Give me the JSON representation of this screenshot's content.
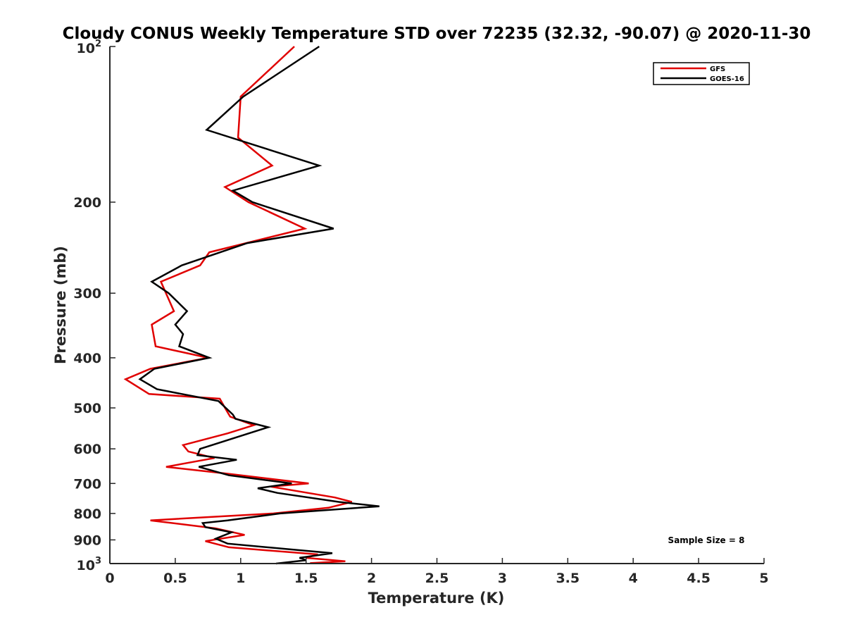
{
  "chart_data": {
    "type": "line",
    "title": "Cloudy CONUS Weekly Temperature STD over 72235 (32.32, -90.07) @ 2020-11-30",
    "xlabel": "Temperature (K)",
    "ylabel": "Pressure (mb)",
    "xlim": [
      0,
      5
    ],
    "ylim": [
      100,
      1000
    ],
    "yscale": "log",
    "y_reversed": true,
    "grid": false,
    "legend_position": "top-right",
    "x_ticks": [
      {
        "value": 0,
        "label": "0"
      },
      {
        "value": 0.5,
        "label": "0.5"
      },
      {
        "value": 1,
        "label": "1"
      },
      {
        "value": 1.5,
        "label": "1.5"
      },
      {
        "value": 2,
        "label": "2"
      },
      {
        "value": 2.5,
        "label": "2.5"
      },
      {
        "value": 3,
        "label": "3"
      },
      {
        "value": 3.5,
        "label": "3.5"
      },
      {
        "value": 4,
        "label": "4"
      },
      {
        "value": 4.5,
        "label": "4.5"
      },
      {
        "value": 5,
        "label": "5"
      }
    ],
    "y_ticks": [
      {
        "value": 100,
        "base": "10",
        "exp": "2"
      },
      {
        "value": 200,
        "label": "200"
      },
      {
        "value": 300,
        "label": "300"
      },
      {
        "value": 400,
        "label": "400"
      },
      {
        "value": 500,
        "label": "500"
      },
      {
        "value": 600,
        "label": "600"
      },
      {
        "value": 700,
        "label": "700"
      },
      {
        "value": 800,
        "label": "800"
      },
      {
        "value": 900,
        "label": "900"
      },
      {
        "value": 1000,
        "base": "10",
        "exp": "3"
      }
    ],
    "series": [
      {
        "name": "GFS",
        "color": "#e00000",
        "points": [
          [
            1.41,
            100
          ],
          [
            1.0,
            125
          ],
          [
            0.98,
            150
          ],
          [
            1.24,
            170
          ],
          [
            0.88,
            187
          ],
          [
            1.06,
            200
          ],
          [
            1.49,
            225
          ],
          [
            0.76,
            250
          ],
          [
            0.69,
            265
          ],
          [
            0.39,
            285
          ],
          [
            0.49,
            325
          ],
          [
            0.32,
            345
          ],
          [
            0.35,
            380
          ],
          [
            0.75,
            400
          ],
          [
            0.31,
            420
          ],
          [
            0.12,
            440
          ],
          [
            0.3,
            470
          ],
          [
            0.84,
            480
          ],
          [
            0.89,
            505
          ],
          [
            0.92,
            520
          ],
          [
            1.1,
            540
          ],
          [
            0.9,
            560
          ],
          [
            0.56,
            590
          ],
          [
            0.6,
            607
          ],
          [
            0.8,
            625
          ],
          [
            0.43,
            650
          ],
          [
            0.89,
            670
          ],
          [
            1.52,
            700
          ],
          [
            1.23,
            710
          ],
          [
            1.72,
            745
          ],
          [
            1.85,
            760
          ],
          [
            1.67,
            780
          ],
          [
            1.25,
            800
          ],
          [
            0.31,
            825
          ],
          [
            0.81,
            855
          ],
          [
            1.03,
            880
          ],
          [
            0.73,
            905
          ],
          [
            0.91,
            930
          ],
          [
            1.59,
            960
          ],
          [
            1.5,
            975
          ],
          [
            1.8,
            990
          ],
          [
            1.53,
            998
          ]
        ]
      },
      {
        "name": "GOES-16",
        "color": "#000000",
        "points": [
          [
            1.6,
            100
          ],
          [
            1.02,
            125
          ],
          [
            0.74,
            145
          ],
          [
            1.6,
            170
          ],
          [
            0.94,
            190
          ],
          [
            1.09,
            200
          ],
          [
            1.71,
            225
          ],
          [
            1.05,
            240
          ],
          [
            0.55,
            265
          ],
          [
            0.32,
            285
          ],
          [
            0.45,
            300
          ],
          [
            0.59,
            325
          ],
          [
            0.5,
            345
          ],
          [
            0.56,
            360
          ],
          [
            0.53,
            380
          ],
          [
            0.76,
            400
          ],
          [
            0.34,
            420
          ],
          [
            0.23,
            440
          ],
          [
            0.36,
            460
          ],
          [
            0.83,
            485
          ],
          [
            0.94,
            515
          ],
          [
            0.96,
            525
          ],
          [
            1.21,
            545
          ],
          [
            0.69,
            600
          ],
          [
            0.67,
            617
          ],
          [
            0.97,
            630
          ],
          [
            0.68,
            650
          ],
          [
            0.91,
            675
          ],
          [
            1.39,
            700
          ],
          [
            1.13,
            715
          ],
          [
            1.28,
            730
          ],
          [
            1.75,
            760
          ],
          [
            2.06,
            775
          ],
          [
            1.3,
            800
          ],
          [
            0.9,
            825
          ],
          [
            0.71,
            835
          ],
          [
            0.73,
            850
          ],
          [
            0.93,
            870
          ],
          [
            0.81,
            895
          ],
          [
            0.9,
            915
          ],
          [
            1.7,
            955
          ],
          [
            1.45,
            975
          ],
          [
            1.5,
            985
          ],
          [
            1.27,
            1000
          ]
        ]
      }
    ],
    "annotations": [
      {
        "text": "Sample Size = 8"
      }
    ]
  }
}
